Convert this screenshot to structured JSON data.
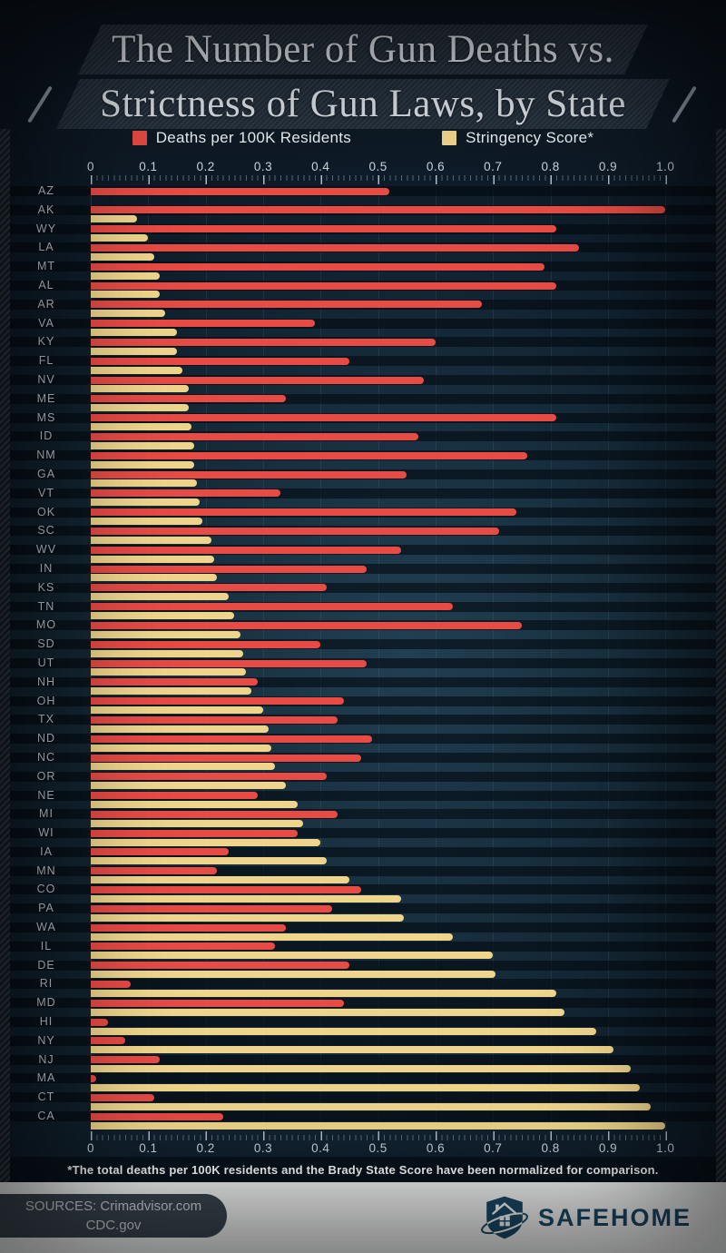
{
  "title": {
    "line1": "The Number of Gun Deaths vs.",
    "line2": "Strictness of Gun Laws, by State"
  },
  "legend": {
    "deaths_label": "Deaths per 100K Residents",
    "stringency_label": "Stringency Score*"
  },
  "colors": {
    "deaths": "#e84a44",
    "stringency": "#efd58b",
    "background": "#13242f",
    "band_dark": "#0a131d",
    "brand_navy": "#1b4a68"
  },
  "footnote": "*The total deaths per 100K residents and the Brady State Score have been normalized for comparison.",
  "footer": {
    "sources_line1": "SOURCES: Crimadvisor.com",
    "sources_line2": "CDC.gov",
    "brand": "SAFEHOME"
  },
  "chart_data": {
    "type": "bar",
    "orientation": "horizontal",
    "title": "The Number of Gun Deaths vs. Strictness of Gun Laws, by State",
    "xlim": [
      0,
      1.0
    ],
    "x_ticks": [
      "0",
      "0.1",
      "0.2",
      "0.3",
      "0.4",
      "0.5",
      "0.6",
      "0.7",
      "0.8",
      "0.9",
      "1.0"
    ],
    "grid": true,
    "legend_position": "top",
    "categories": [
      "AZ",
      "AK",
      "WY",
      "LA",
      "MT",
      "AL",
      "AR",
      "VA",
      "KY",
      "FL",
      "NV",
      "ME",
      "MS",
      "ID",
      "NM",
      "GA",
      "VT",
      "OK",
      "SC",
      "WV",
      "IN",
      "KS",
      "TN",
      "MO",
      "SD",
      "UT",
      "NH",
      "OH",
      "TX",
      "ND",
      "NC",
      "OR",
      "NE",
      "MI",
      "WI",
      "IA",
      "MN",
      "CO",
      "PA",
      "WA",
      "IL",
      "DE",
      "RI",
      "MD",
      "HI",
      "NY",
      "NJ",
      "MA",
      "CT",
      "CA"
    ],
    "series": [
      {
        "name": "Deaths per 100K Residents",
        "color": "#e84a44",
        "values": [
          0.52,
          1.0,
          0.81,
          0.85,
          0.79,
          0.81,
          0.68,
          0.39,
          0.6,
          0.45,
          0.58,
          0.34,
          0.81,
          0.57,
          0.76,
          0.55,
          0.33,
          0.74,
          0.71,
          0.54,
          0.48,
          0.41,
          0.63,
          0.75,
          0.4,
          0.48,
          0.29,
          0.44,
          0.43,
          0.49,
          0.47,
          0.41,
          0.29,
          0.43,
          0.36,
          0.24,
          0.22,
          0.47,
          0.42,
          0.34,
          0.32,
          0.45,
          0.07,
          0.44,
          0.03,
          0.06,
          0.12,
          0.01,
          0.11,
          0.23
        ]
      },
      {
        "name": "Stringency Score*",
        "color": "#efd58b",
        "values": [
          0.0,
          0.08,
          0.1,
          0.11,
          0.12,
          0.12,
          0.13,
          0.15,
          0.15,
          0.16,
          0.17,
          0.17,
          0.175,
          0.18,
          0.18,
          0.185,
          0.19,
          0.195,
          0.21,
          0.215,
          0.22,
          0.24,
          0.25,
          0.26,
          0.265,
          0.27,
          0.28,
          0.3,
          0.31,
          0.315,
          0.32,
          0.34,
          0.36,
          0.37,
          0.4,
          0.41,
          0.45,
          0.54,
          0.545,
          0.63,
          0.7,
          0.705,
          0.81,
          0.825,
          0.88,
          0.91,
          0.94,
          0.955,
          0.975,
          1.0
        ]
      }
    ]
  }
}
